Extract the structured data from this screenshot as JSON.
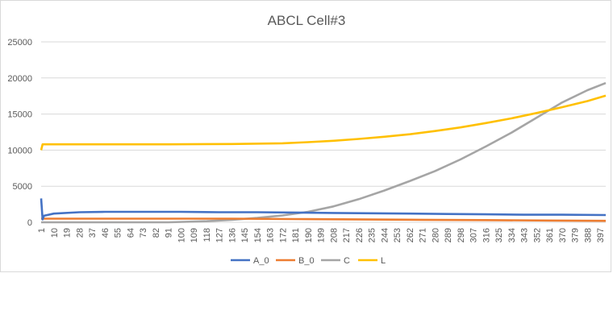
{
  "chart_data": {
    "type": "line",
    "title": "ABCL Cell#3",
    "xlabel": "",
    "ylabel": "",
    "ylim": [
      0,
      25000
    ],
    "yticks": [
      0,
      5000,
      10000,
      15000,
      20000,
      25000
    ],
    "ytick_labels": [
      "0",
      "5000",
      "10000",
      "15000",
      "20000",
      "25000"
    ],
    "xlim": [
      1,
      401
    ],
    "xticks": [
      1,
      10,
      19,
      28,
      37,
      46,
      55,
      64,
      73,
      82,
      91,
      100,
      109,
      118,
      127,
      136,
      145,
      154,
      163,
      172,
      181,
      190,
      199,
      208,
      217,
      226,
      235,
      244,
      253,
      262,
      271,
      280,
      289,
      298,
      307,
      316,
      325,
      334,
      343,
      352,
      361,
      370,
      379,
      388,
      397
    ],
    "xtick_labels": [
      "1",
      "10",
      "19",
      "28",
      "37",
      "46",
      "55",
      "64",
      "73",
      "82",
      "91",
      "100",
      "109",
      "118",
      "127",
      "136",
      "145",
      "154",
      "163",
      "172",
      "181",
      "190",
      "199",
      "208",
      "217",
      "226",
      "235",
      "244",
      "253",
      "262",
      "271",
      "280",
      "289",
      "298",
      "307",
      "316",
      "325",
      "334",
      "343",
      "352",
      "361",
      "370",
      "379",
      "388",
      "397"
    ],
    "grid": true,
    "legend_position": "bottom",
    "series": [
      {
        "name": "A_0",
        "color": "#4472c4",
        "x": [
          1,
          2,
          3,
          10,
          28,
          46,
          73,
          100,
          127,
          154,
          181,
          208,
          235,
          262,
          289,
          316,
          343,
          370,
          401
        ],
        "values": [
          3300,
          400,
          900,
          1200,
          1400,
          1450,
          1450,
          1450,
          1400,
          1400,
          1350,
          1300,
          1250,
          1200,
          1150,
          1100,
          1050,
          1050,
          1000
        ]
      },
      {
        "name": "B_0",
        "color": "#ed7d31",
        "x": [
          1,
          10,
          46,
          91,
          136,
          181,
          226,
          271,
          316,
          361,
          401
        ],
        "values": [
          500,
          500,
          500,
          500,
          500,
          450,
          400,
          350,
          300,
          250,
          200
        ]
      },
      {
        "name": "C",
        "color": "#a5a5a5",
        "x": [
          1,
          46,
          91,
          118,
          136,
          154,
          172,
          190,
          208,
          226,
          244,
          262,
          280,
          298,
          316,
          334,
          352,
          370,
          388,
          401
        ],
        "values": [
          0,
          0,
          0,
          150,
          350,
          600,
          950,
          1450,
          2200,
          3200,
          4400,
          5700,
          7100,
          8700,
          10500,
          12400,
          14500,
          16600,
          18300,
          19300
        ]
      },
      {
        "name": "L",
        "color": "#ffc000",
        "x": [
          1,
          2,
          10,
          46,
          91,
          136,
          172,
          190,
          208,
          226,
          244,
          262,
          280,
          298,
          316,
          334,
          352,
          370,
          388,
          401
        ],
        "values": [
          10000,
          10800,
          10800,
          10800,
          10800,
          10850,
          10950,
          11100,
          11300,
          11550,
          11850,
          12200,
          12650,
          13150,
          13750,
          14400,
          15150,
          15950,
          16800,
          17550
        ]
      }
    ]
  }
}
